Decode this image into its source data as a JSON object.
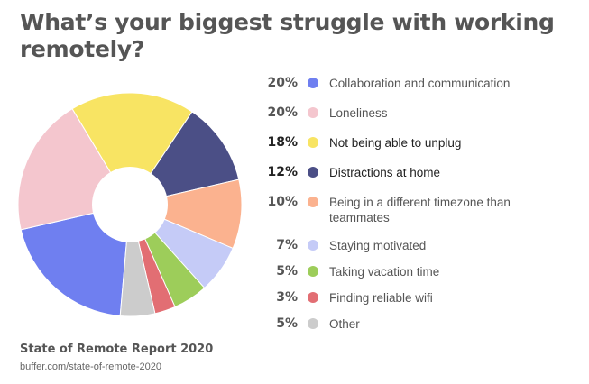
{
  "title": "What’s your biggest struggle with working remotely?",
  "source": {
    "title": "State of Remote Report 2020",
    "url": "buffer.com/state-of-remote-2020"
  },
  "chart_data": {
    "type": "pie",
    "style": "donut",
    "title": "What’s your biggest struggle with working remotely?",
    "legend_position": "right",
    "series": [
      {
        "label": "Collaboration and communication",
        "value": 20,
        "pct_label": "20%",
        "color": "#6f7ff0"
      },
      {
        "label": "Loneliness",
        "value": 20,
        "pct_label": "20%",
        "color": "#f4c6ce"
      },
      {
        "label": "Not being able to unplug",
        "value": 18,
        "pct_label": "18%",
        "color": "#f8e463"
      },
      {
        "label": "Distractions at home",
        "value": 12,
        "pct_label": "12%",
        "color": "#4b4f86"
      },
      {
        "label": "Being in a different timezone than teammates",
        "value": 10,
        "pct_label": "10%",
        "color": "#fbb28f"
      },
      {
        "label": "Staying motivated",
        "value": 7,
        "pct_label": "7%",
        "color": "#c5cbf7"
      },
      {
        "label": "Taking vacation time",
        "value": 5,
        "pct_label": "5%",
        "color": "#9dcd5a"
      },
      {
        "label": "Finding reliable wifi",
        "value": 3,
        "pct_label": "3%",
        "color": "#e26e73"
      },
      {
        "label": "Other",
        "value": 5,
        "pct_label": "5%",
        "color": "#cccccc"
      }
    ]
  }
}
